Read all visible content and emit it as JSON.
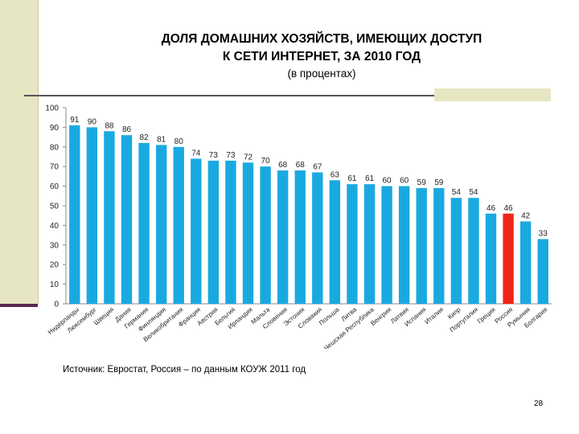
{
  "slide": {
    "title_line1": "ДОЛЯ ДОМАШНИХ ХОЗЯЙСТВ, ИМЕЮЩИХ ДОСТУП",
    "title_line2": "К СЕТИ ИНТЕРНЕТ, ЗА 2010 ГОД",
    "subtitle": "(в процентах)",
    "source": "Источник: Евростат, Россия – по данным КОУЖ 2011 год",
    "page_number": "28"
  },
  "colors": {
    "bar": "#19a9e1",
    "highlight": "#f02418",
    "accent_bg": "#e6e6c3",
    "accent_line": "#5a2a4e"
  },
  "chart_data": {
    "type": "bar",
    "categories": [
      "Нидерланды",
      "Люксембург",
      "Швеция",
      "Дания",
      "Германия",
      "Финляндия",
      "Великобритания",
      "Франция",
      "Австрия",
      "Бельгия",
      "Ирландия",
      "Мальта",
      "Словения",
      "Эстония",
      "Словакия",
      "Польша",
      "Литва",
      "Чешская Республика",
      "Венгрия",
      "Латвия",
      "Испания",
      "Италия",
      "Кипр",
      "Португалия",
      "Греция",
      "Россия",
      "Румыния",
      "Болгария"
    ],
    "values": [
      91,
      90,
      88,
      86,
      82,
      81,
      80,
      74,
      73,
      73,
      72,
      70,
      68,
      68,
      67,
      63,
      61,
      61,
      60,
      60,
      59,
      59,
      54,
      54,
      46,
      46,
      42,
      33
    ],
    "highlight_category": "Россия",
    "ylim": [
      0,
      100
    ],
    "yticks": [
      0,
      10,
      20,
      30,
      40,
      50,
      60,
      70,
      80,
      90,
      100
    ],
    "xlabel": "",
    "ylabel": "",
    "grid": false,
    "data_labels": true
  }
}
